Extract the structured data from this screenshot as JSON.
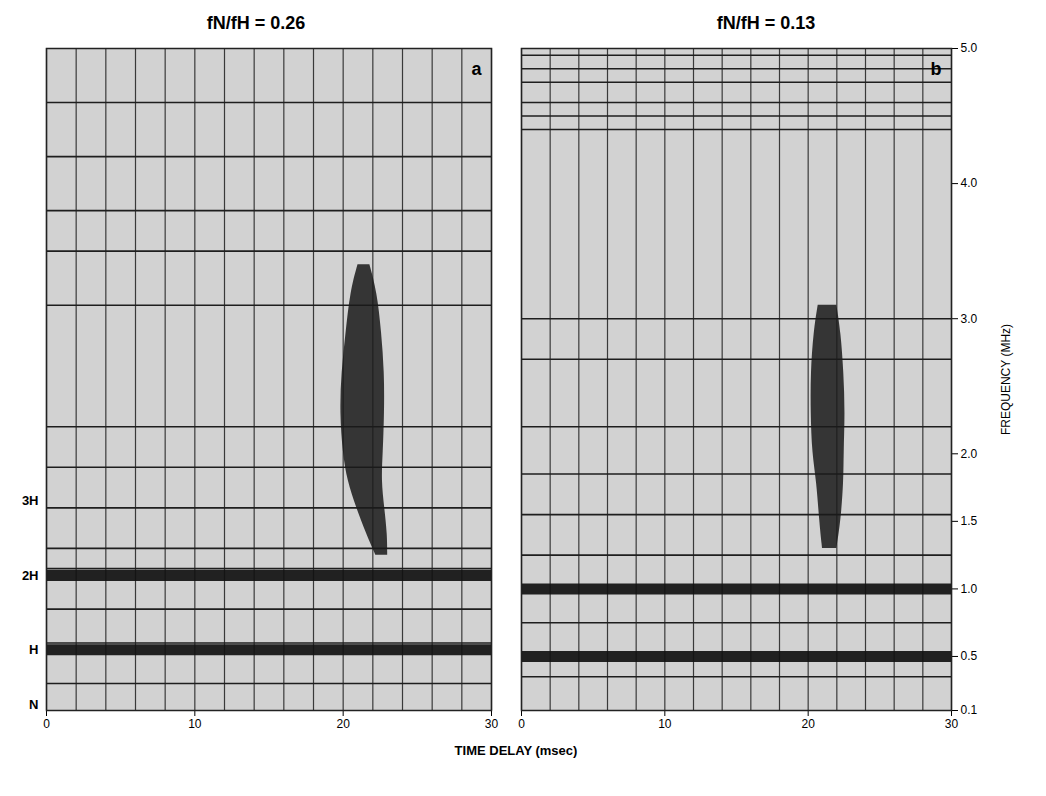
{
  "chart_data": [
    {
      "type": "area",
      "title": "fN/fH = 0.26",
      "panel": "a",
      "xlabel": "TIME DELAY (msec)",
      "xlim": [
        0,
        30
      ],
      "xticks": [
        0,
        10,
        20,
        30
      ],
      "ylim": [
        0.1,
        5.0
      ],
      "delay_grid": [
        0,
        2,
        4,
        6,
        8,
        10,
        12,
        14,
        16,
        18,
        20,
        22,
        24,
        26,
        28,
        30
      ],
      "harmonics": [
        {
          "label": "N",
          "frequency": 0.14
        },
        {
          "label": "H",
          "frequency": 0.55
        },
        {
          "label": "2H",
          "frequency": 1.1
        },
        {
          "label": "3H",
          "frequency": 1.65
        }
      ],
      "strong_markers": [
        0.55,
        1.1
      ],
      "markers": [
        4.6,
        4.2,
        3.8,
        3.5,
        3.1,
        2.2,
        1.9,
        1.6,
        1.3,
        1.15,
        0.85,
        0.6,
        0.3
      ],
      "echo": {
        "frequency": [
          1.25,
          1.4,
          1.6,
          1.8,
          2.0,
          2.3,
          2.6,
          2.9,
          3.2,
          3.4
        ],
        "delay_start": [
          22.2,
          21.6,
          20.9,
          20.3,
          20.0,
          19.8,
          19.9,
          20.2,
          20.5,
          21.0
        ],
        "delay_end": [
          23.0,
          23.0,
          22.8,
          22.6,
          22.7,
          22.8,
          22.8,
          22.6,
          22.3,
          21.8
        ]
      }
    },
    {
      "type": "area",
      "title": "fN/fH = 0.13",
      "panel": "b",
      "ylabel": "FREQUENCY (MHz)",
      "xlim": [
        0,
        30
      ],
      "xticks": [
        0,
        10,
        20,
        30
      ],
      "ylim": [
        0.1,
        5.0
      ],
      "yticks": [
        0.1,
        0.5,
        {
          "value": 1,
          "label": "1.0"
        },
        1.5,
        {
          "value": 2,
          "label": "2.0"
        },
        {
          "value": 3,
          "label": "3.0"
        },
        {
          "value": 4,
          "label": "4.0"
        },
        {
          "value": 5,
          "label": "5.0"
        }
      ],
      "delay_grid": [
        0,
        2,
        4,
        6,
        8,
        10,
        12,
        14,
        16,
        18,
        20,
        22,
        24,
        26,
        28,
        30
      ],
      "strong_markers": [
        0.5,
        1.0
      ],
      "markers": [
        4.95,
        4.85,
        4.75,
        4.6,
        4.5,
        4.4,
        3.0,
        2.7,
        2.2,
        1.85,
        1.55,
        1.25,
        0.75,
        0.35
      ],
      "echo": {
        "frequency": [
          1.3,
          1.5,
          1.8,
          2.0,
          2.3,
          2.6,
          2.9,
          3.1
        ],
        "delay_start": [
          21.0,
          20.8,
          20.6,
          20.3,
          20.2,
          20.2,
          20.4,
          20.7
        ],
        "delay_end": [
          22.0,
          22.3,
          22.5,
          22.5,
          22.6,
          22.5,
          22.3,
          22.0
        ]
      }
    }
  ]
}
